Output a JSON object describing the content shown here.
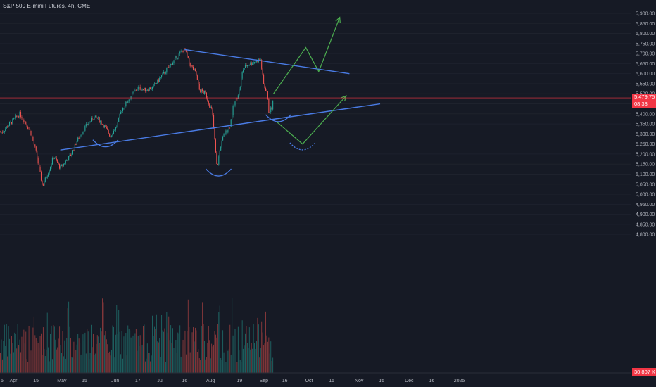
{
  "header": {
    "title": "S&P 500 E-mini Futures, 4h, CME"
  },
  "last_price_badge": {
    "price": "5,479.75",
    "countdown": "08:33"
  },
  "volume_badge": {
    "value": "30.807 K"
  },
  "colors": {
    "background": "#161a25",
    "up": "#26a69a",
    "down": "#ef5350",
    "trendline": "#4a7ce6",
    "projection": "#4caf50",
    "price_line": "#f23645",
    "axis_text": "#b2b5be"
  },
  "chart_data": {
    "type": "candlestick",
    "title": "S&P 500 E-mini Futures, 4h, CME",
    "y_axis": {
      "position": "right",
      "range": [
        4750,
        5950
      ],
      "ticks": [
        5900,
        5850,
        5800,
        5750,
        5700,
        5650,
        5600,
        5550,
        5500,
        5450,
        5400,
        5350,
        5300,
        5250,
        5200,
        5150,
        5100,
        5050,
        5000,
        4950,
        4900,
        4850,
        4800
      ],
      "tick_labels": [
        "5,900.00",
        "5,850.00",
        "5,800.00",
        "5,750.00",
        "5,700.00",
        "5,650.00",
        "5,600.00",
        "5,550.00",
        "5,500.00",
        "5,450.00",
        "5,400.00",
        "5,350.00",
        "5,300.00",
        "5,250.00",
        "5,200.00",
        "5,150.00",
        "5,100.00",
        "5,050.00",
        "5,000.00",
        "4,950.00",
        "4,900.00",
        "4,850.00",
        "4,800.00"
      ]
    },
    "x_axis": {
      "tick_labels": [
        "5",
        "Apr",
        "15",
        "May",
        "15",
        "Jun",
        "17",
        "Jul",
        "16",
        "Aug",
        "19",
        "Sep",
        "16",
        "Oct",
        "15",
        "Nov",
        "15",
        "Dec",
        "16",
        "2025"
      ]
    },
    "last_price": 5479.75,
    "price_path": [
      [
        "2024-03-25",
        5310
      ],
      [
        "2024-04-01",
        5370
      ],
      [
        "2024-04-05",
        5400
      ],
      [
        "2024-04-09",
        5350
      ],
      [
        "2024-04-12",
        5300
      ],
      [
        "2024-04-15",
        5210
      ],
      [
        "2024-04-19",
        5040
      ],
      [
        "2024-04-23",
        5120
      ],
      [
        "2024-04-26",
        5190
      ],
      [
        "2024-04-30",
        5130
      ],
      [
        "2024-05-03",
        5160
      ],
      [
        "2024-05-07",
        5200
      ],
      [
        "2024-05-10",
        5260
      ],
      [
        "2024-05-15",
        5330
      ],
      [
        "2024-05-20",
        5380
      ],
      [
        "2024-05-23",
        5380
      ],
      [
        "2024-05-28",
        5330
      ],
      [
        "2024-05-31",
        5290
      ],
      [
        "2024-06-04",
        5340
      ],
      [
        "2024-06-07",
        5420
      ],
      [
        "2024-06-12",
        5480
      ],
      [
        "2024-06-17",
        5530
      ],
      [
        "2024-06-21",
        5520
      ],
      [
        "2024-06-26",
        5530
      ],
      [
        "2024-07-01",
        5580
      ],
      [
        "2024-07-05",
        5620
      ],
      [
        "2024-07-10",
        5670
      ],
      [
        "2024-07-14",
        5710
      ],
      [
        "2024-07-16",
        5720
      ],
      [
        "2024-07-19",
        5650
      ],
      [
        "2024-07-23",
        5600
      ],
      [
        "2024-07-25",
        5520
      ],
      [
        "2024-07-29",
        5500
      ],
      [
        "2024-08-01",
        5430
      ],
      [
        "2024-08-02",
        5420
      ],
      [
        "2024-08-05",
        5130
      ],
      [
        "2024-08-07",
        5230
      ],
      [
        "2024-08-09",
        5290
      ],
      [
        "2024-08-13",
        5340
      ],
      [
        "2024-08-15",
        5430
      ],
      [
        "2024-08-19",
        5520
      ],
      [
        "2024-08-21",
        5620
      ],
      [
        "2024-08-23",
        5640
      ],
      [
        "2024-08-28",
        5660
      ],
      [
        "2024-09-01",
        5670
      ],
      [
        "2024-09-03",
        5540
      ],
      [
        "2024-09-05",
        5510
      ],
      [
        "2024-09-06",
        5410
      ],
      [
        "2024-09-08",
        5430
      ],
      [
        "2024-09-09",
        5479.75
      ]
    ],
    "volume": {
      "label": "Volume",
      "last_value": "30.807 K"
    },
    "annotations": {
      "trendlines": [
        {
          "name": "descending-resistance",
          "from": [
            "2024-07-16",
            5720
          ],
          "to": [
            "2024-10-26",
            5600
          ]
        },
        {
          "name": "ascending-support",
          "from": [
            "2024-04-30",
            5220
          ],
          "to": [
            "2024-11-14",
            5450
          ]
        }
      ],
      "projections": [
        {
          "name": "bullish-path",
          "points": [
            [
              "2024-09-09",
              5500
            ],
            [
              "2024-09-29",
              5730
            ],
            [
              "2024-10-07",
              5610
            ],
            [
              "2024-10-20",
              5880
            ]
          ]
        },
        {
          "name": "bearish-path",
          "points": [
            [
              "2024-09-11",
              5360
            ],
            [
              "2024-09-27",
              5250
            ],
            [
              "2024-10-24",
              5490
            ]
          ]
        }
      ],
      "arcs": [
        {
          "name": "left-shoulder",
          "center": [
            "2024-05-28",
            5250
          ]
        },
        {
          "name": "head",
          "center": [
            "2024-08-06",
            5105
          ]
        },
        {
          "name": "right-shoulder",
          "center": [
            "2024-09-12",
            5375
          ]
        },
        {
          "name": "projected-shoulder",
          "center": [
            "2024-09-27",
            5235
          ],
          "dashed": true
        }
      ]
    }
  }
}
